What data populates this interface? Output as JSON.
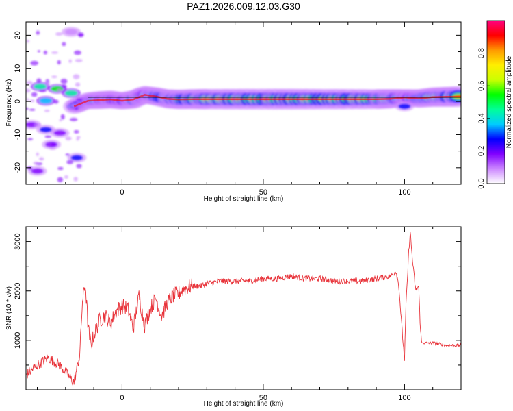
{
  "title": "PAZ1.2026.009.12.03.G30",
  "colors": {
    "snr_line": "#e8333a",
    "ridge_core": "#ff0000",
    "axis": "#000000",
    "colormap": [
      "#ffffff",
      "#cc88ff",
      "#8000ff",
      "#0000ff",
      "#00ccff",
      "#00ff99",
      "#00ff00",
      "#ccff00",
      "#ffee00",
      "#ff9900",
      "#ff0000",
      "#ff0080"
    ]
  },
  "chart_data": [
    {
      "type": "heatmap",
      "xlabel": "Height of straight line (km)",
      "ylabel": "Frequency (Hz)",
      "xlim": [
        -34,
        120
      ],
      "ylim": [
        -25,
        24
      ],
      "xticks": [
        0,
        50,
        100
      ],
      "yticks": [
        -20,
        -10,
        0,
        10,
        20
      ],
      "colorbar": {
        "label": "Normalized spectral amplitude",
        "range": [
          0,
          1
        ],
        "ticks": [
          0.0,
          0.2,
          0.4,
          0.6,
          0.8
        ]
      },
      "ridge": {
        "x": [
          -17,
          -12,
          -8,
          -4,
          0,
          4,
          8,
          12,
          16,
          20,
          25,
          30,
          40,
          50,
          60,
          70,
          80,
          90,
          95,
          100,
          105,
          110,
          115,
          120
        ],
        "frequency": [
          -1.5,
          0.2,
          0.4,
          0.6,
          0.2,
          0.6,
          2.0,
          1.5,
          0.8,
          0.6,
          0.7,
          0.7,
          0.7,
          0.7,
          0.7,
          0.7,
          0.7,
          0.7,
          0.8,
          1.2,
          0.9,
          1.3,
          1.4,
          1.5
        ],
        "amplitude": [
          0.45,
          0.6,
          0.7,
          0.7,
          0.65,
          0.75,
          0.7,
          0.75,
          0.8,
          0.85,
          0.9,
          0.95,
          0.98,
          1.0,
          1.0,
          0.97,
          0.95,
          0.9,
          0.85,
          0.6,
          0.75,
          0.85,
          0.9,
          0.95
        ]
      },
      "blobs": [
        {
          "x": -29,
          "frequency": 4.5,
          "amplitude": 0.45
        },
        {
          "x": -23,
          "frequency": 3.8,
          "amplitude": 0.5
        },
        {
          "x": -18,
          "frequency": 2.5,
          "amplitude": 0.45
        },
        {
          "x": -27,
          "frequency": 0.2,
          "amplitude": 0.35
        },
        {
          "x": -32,
          "frequency": -7,
          "amplitude": 0.2
        },
        {
          "x": -27,
          "frequency": -8.5,
          "amplitude": 0.25
        },
        {
          "x": -22,
          "frequency": -9.5,
          "amplitude": 0.22
        },
        {
          "x": -25,
          "frequency": -13,
          "amplitude": 0.2
        },
        {
          "x": -16,
          "frequency": -17,
          "amplitude": 0.3
        },
        {
          "x": -30,
          "frequency": -21,
          "amplitude": 0.15
        },
        {
          "x": -18,
          "frequency": 21,
          "amplitude": 0.12
        },
        {
          "x": 100,
          "frequency": -1.5,
          "amplitude": 0.25
        }
      ]
    },
    {
      "type": "line",
      "xlabel": "Height of straight line (km)",
      "ylabel": "SNR (10 * v/v)",
      "xlim": [
        -34,
        120
      ],
      "ylim": [
        0,
        3300
      ],
      "xticks": [
        0,
        50,
        100
      ],
      "yticks": [
        1000,
        2000,
        3000
      ],
      "series": [
        {
          "x": [
            -34,
            -30,
            -26,
            -22,
            -19,
            -17,
            -15,
            -14,
            -13,
            -12,
            -11,
            -10,
            -8,
            -6,
            -4,
            -2,
            0,
            2,
            4,
            6,
            8,
            10,
            12,
            14,
            16,
            18,
            20,
            22,
            25,
            28,
            30,
            35,
            40,
            45,
            50,
            55,
            60,
            65,
            70,
            75,
            80,
            85,
            90,
            95,
            97,
            98,
            99,
            100,
            100.5,
            101,
            101.5,
            102,
            103,
            104,
            105,
            105.5,
            106,
            110,
            115,
            120
          ],
          "values": [
            300,
            500,
            650,
            500,
            280,
            150,
            700,
            1800,
            2150,
            1250,
            900,
            1100,
            1400,
            1500,
            1350,
            1600,
            1700,
            1650,
            1250,
            1900,
            1300,
            1650,
            1850,
            1500,
            1750,
            1900,
            1950,
            2050,
            2100,
            2100,
            2150,
            2200,
            2200,
            2200,
            2250,
            2250,
            2300,
            2250,
            2250,
            2200,
            2200,
            2200,
            2250,
            2300,
            2400,
            2100,
            1300,
            600,
            1700,
            2200,
            2800,
            3200,
            2500,
            2000,
            2100,
            1400,
            950,
            950,
            900,
            900
          ]
        }
      ]
    }
  ]
}
